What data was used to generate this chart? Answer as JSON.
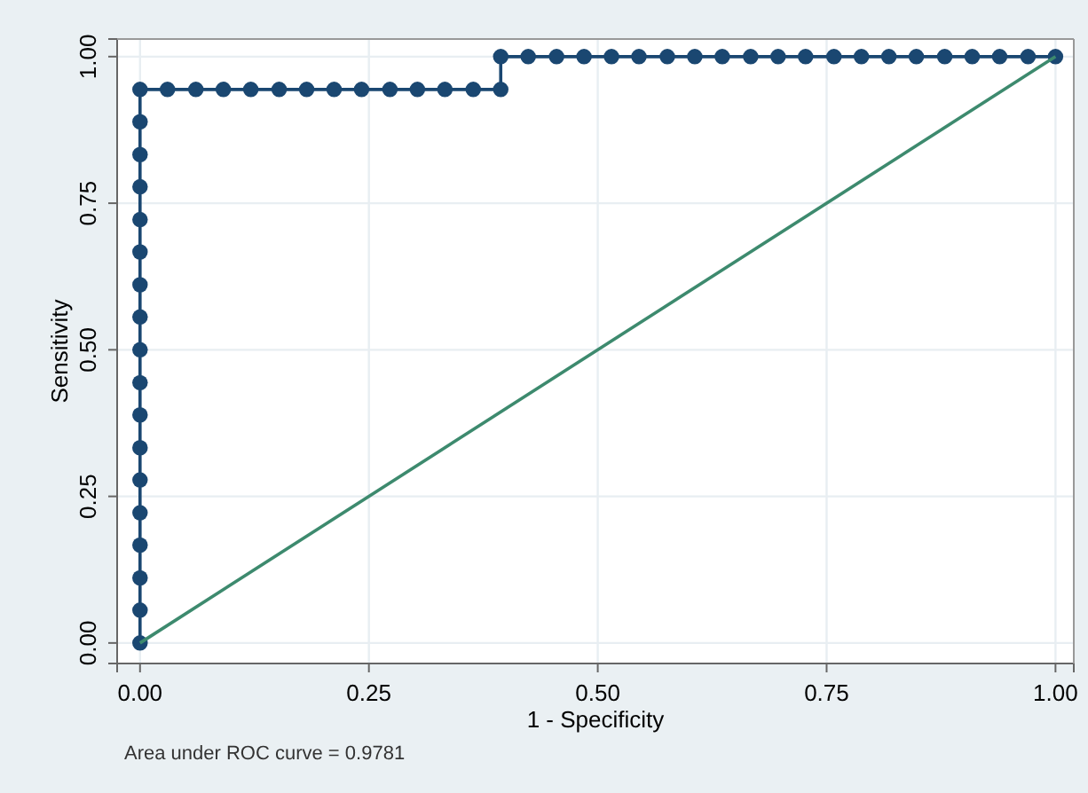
{
  "chart_data": {
    "type": "line",
    "xlabel": "1 - Specificity",
    "ylabel": "Sensitivity",
    "xlim": [
      -0.025,
      1.02
    ],
    "ylim": [
      -0.035,
      1.03
    ],
    "xticks": [
      {
        "value": 0,
        "label": "0.00"
      },
      {
        "value": 0.25,
        "label": "0.25"
      },
      {
        "value": 0.5,
        "label": "0.50"
      },
      {
        "value": 0.75,
        "label": "0.75"
      },
      {
        "value": 1,
        "label": "1.00"
      }
    ],
    "yticks": [
      {
        "value": 0,
        "label": "0.00"
      },
      {
        "value": 0.25,
        "label": "0.25"
      },
      {
        "value": 0.5,
        "label": "0.50"
      },
      {
        "value": 0.75,
        "label": "0.75"
      },
      {
        "value": 1,
        "label": "1.00"
      }
    ],
    "grid": true,
    "annotations": [
      "Area under ROC curve = 0.9781"
    ],
    "series": [
      {
        "color": "#1a4771",
        "marker": "circle",
        "x": [
          0,
          0,
          0,
          0,
          0,
          0,
          0,
          0,
          0,
          0,
          0,
          0,
          0,
          0,
          0,
          0,
          0,
          0,
          0.03,
          0.061,
          0.091,
          0.121,
          0.152,
          0.182,
          0.212,
          0.242,
          0.273,
          0.303,
          0.333,
          0.364,
          0.394,
          0.394,
          0.424,
          0.455,
          0.485,
          0.515,
          0.545,
          0.576,
          0.606,
          0.636,
          0.667,
          0.697,
          0.727,
          0.758,
          0.788,
          0.818,
          0.848,
          0.879,
          0.909,
          0.939,
          0.97,
          1
        ],
        "values": [
          0,
          0.056,
          0.111,
          0.167,
          0.222,
          0.278,
          0.333,
          0.389,
          0.444,
          0.5,
          0.556,
          0.611,
          0.667,
          0.722,
          0.778,
          0.833,
          0.889,
          0.944,
          0.944,
          0.944,
          0.944,
          0.944,
          0.944,
          0.944,
          0.944,
          0.944,
          0.944,
          0.944,
          0.944,
          0.944,
          0.944,
          1,
          1,
          1,
          1,
          1,
          1,
          1,
          1,
          1,
          1,
          1,
          1,
          1,
          1,
          1,
          1,
          1,
          1,
          1,
          1,
          1
        ]
      },
      {
        "color": "#3d8a6e",
        "marker": "none",
        "x": [
          0,
          1
        ],
        "values": [
          0,
          1
        ]
      }
    ]
  }
}
